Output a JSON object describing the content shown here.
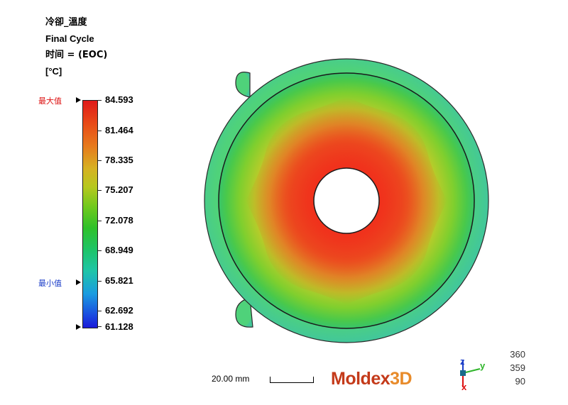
{
  "header": {
    "result_name": "冷卻_溫度",
    "cycle": "Final Cycle",
    "time_label": "时间 = (EOC)",
    "unit": "[°C]"
  },
  "legend": {
    "max_label": "最大值",
    "min_label": "最小值",
    "ticks": [
      "84.593",
      "81.464",
      "78.335",
      "75.207",
      "72.078",
      "68.949",
      "65.821",
      "62.692",
      "61.128"
    ],
    "colors": {
      "hot": "#e01a1a",
      "mid": "#6ec91d",
      "cool": "#1ec5a8",
      "cold": "#1a1ad8"
    }
  },
  "scale": {
    "label": "20.00 mm"
  },
  "logo": {
    "part1": "Moldex",
    "part2": "3D"
  },
  "axes": {
    "z": "z",
    "y": "y",
    "x": "x"
  },
  "view_angles": [
    "360",
    "359",
    "90"
  ]
}
